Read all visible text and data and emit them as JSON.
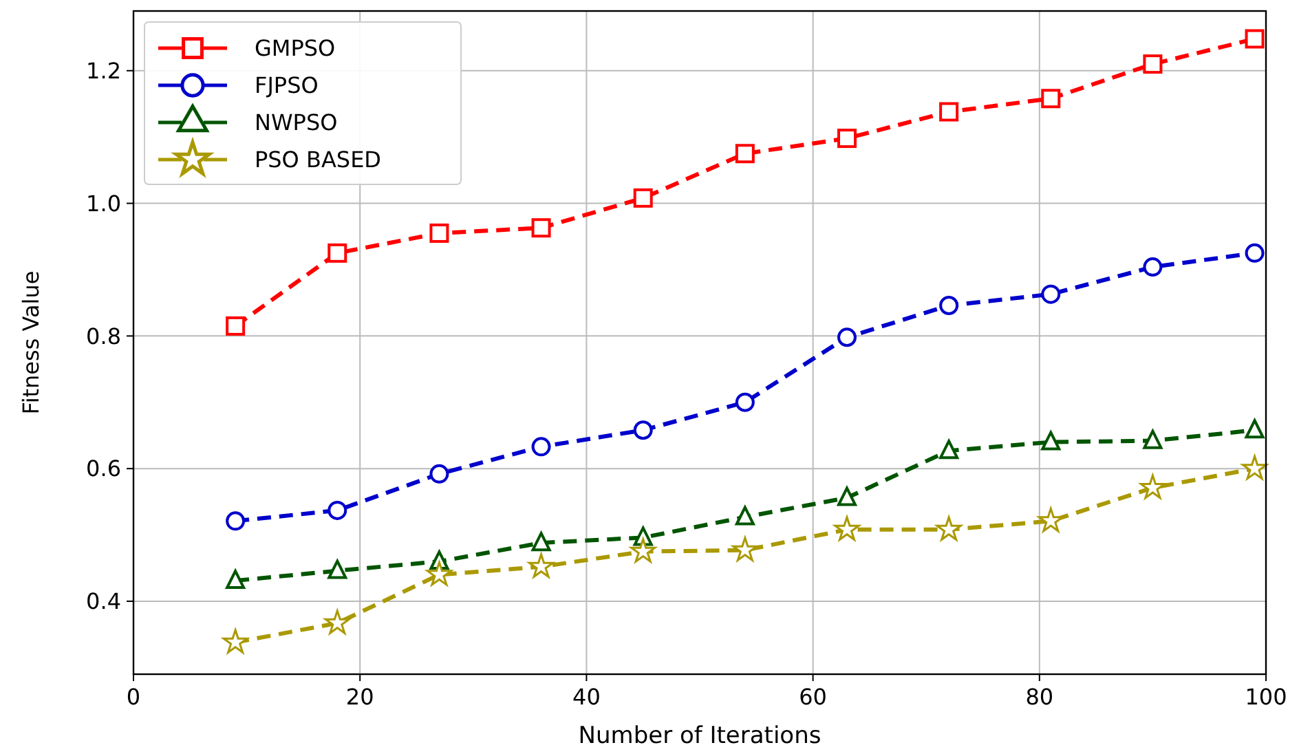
{
  "chart_data": {
    "type": "line",
    "xlabel": "Number of Iterations",
    "ylabel": "Fitness Value",
    "x": [
      9,
      18,
      27,
      36,
      45,
      54,
      63,
      72,
      81,
      90,
      99
    ],
    "series": [
      {
        "name": "GMPSO",
        "color": "#ff0000",
        "marker": "square",
        "values": [
          0.815,
          0.925,
          0.955,
          0.963,
          1.008,
          1.075,
          1.098,
          1.138,
          1.158,
          1.21,
          1.248
        ]
      },
      {
        "name": "FJPSO",
        "color": "#0000cc",
        "marker": "circle",
        "values": [
          0.521,
          0.537,
          0.592,
          0.633,
          0.658,
          0.7,
          0.798,
          0.846,
          0.863,
          0.904,
          0.925
        ]
      },
      {
        "name": "NWPSO",
        "color": "#005500",
        "marker": "triangle",
        "values": [
          0.431,
          0.446,
          0.46,
          0.488,
          0.496,
          0.527,
          0.556,
          0.627,
          0.64,
          0.642,
          0.658
        ]
      },
      {
        "name": "PSO BASED",
        "color": "#aa9900",
        "marker": "star",
        "values": [
          0.338,
          0.367,
          0.44,
          0.452,
          0.475,
          0.477,
          0.508,
          0.508,
          0.521,
          0.571,
          0.6
        ]
      }
    ],
    "xlim": [
      0,
      100
    ],
    "xticks": [
      0,
      20,
      40,
      60,
      80,
      100
    ],
    "ylim": [
      0.29,
      1.29
    ],
    "yticks": [
      0.4,
      0.6,
      0.8,
      {
        "value": 1,
        "label": "1.0"
      },
      1.2
    ],
    "grid": true,
    "legend": "top left",
    "line_style": "dashed"
  }
}
